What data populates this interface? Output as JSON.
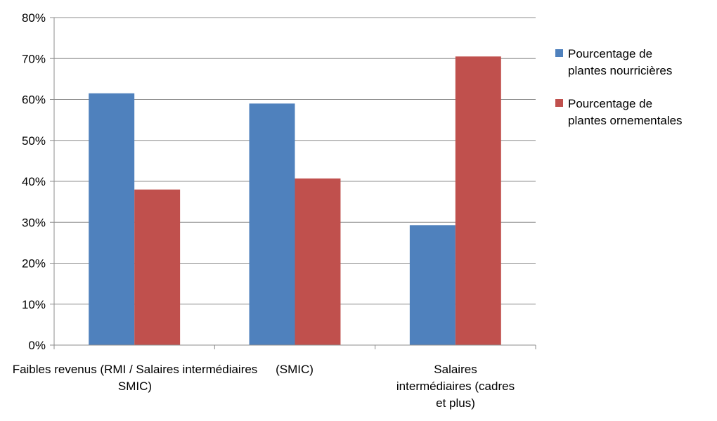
{
  "chart_data": {
    "type": "bar",
    "categories": [
      [
        "Faibles revenus (RMI / Salaires intermédiaires",
        "SMIC)"
      ],
      [
        "(SMIC)"
      ],
      [
        "Salaires",
        "intermédiaires (cadres",
        "et plus)"
      ]
    ],
    "series": [
      {
        "name": "Pourcentage de plantes nourricières",
        "legend_lines": [
          "Pourcentage de",
          "plantes nourricières"
        ],
        "values": [
          61.5,
          59.0,
          29.3
        ],
        "color": "#4F81BD"
      },
      {
        "name": "Pourcentage de plantes ornementales",
        "legend_lines": [
          "Pourcentage de",
          "plantes ornementales"
        ],
        "values": [
          38.0,
          40.7,
          70.5
        ],
        "color": "#C0504D"
      }
    ],
    "ylim": [
      0,
      80
    ],
    "yticks": [
      "0%",
      "10%",
      "20%",
      "30%",
      "40%",
      "50%",
      "60%",
      "70%",
      "80%"
    ],
    "grid": true,
    "legend": "right",
    "title": "",
    "xlabel": "",
    "ylabel": ""
  }
}
